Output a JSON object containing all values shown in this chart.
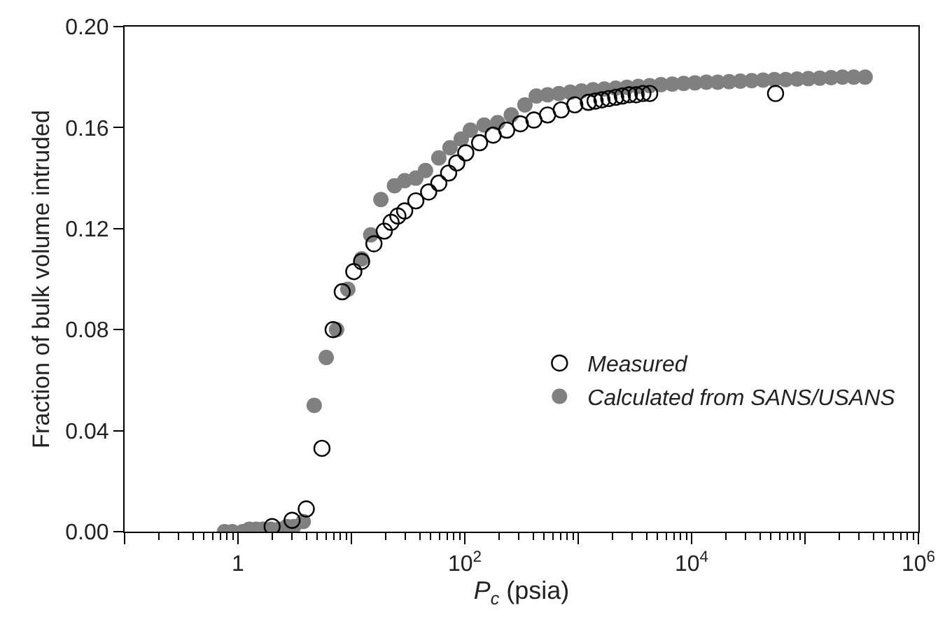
{
  "chart_data": {
    "type": "scatter",
    "xlabel": "P$_{c}$ (psia)",
    "ylabel": "Fraction of bulk volume intruded",
    "log": "x",
    "xlim": [
      0.1,
      1000000
    ],
    "ylim": [
      0,
      0.2
    ],
    "xticks": [
      {
        "value": 0.1,
        "label": null
      },
      {
        "value": 1,
        "label": "1"
      },
      {
        "value": 10,
        "label": null
      },
      {
        "value": 100,
        "label": "10$^{2}$"
      },
      {
        "value": 1000,
        "label": null
      },
      {
        "value": 10000,
        "label": "10$^{4}$"
      },
      {
        "value": 100000,
        "label": null
      },
      {
        "value": 1000000,
        "label": "10$^{6}$"
      }
    ],
    "yticks": [
      {
        "value": 0,
        "label": "0.00"
      },
      {
        "value": 0.04,
        "label": "0.04"
      },
      {
        "value": 0.08,
        "label": "0.08"
      },
      {
        "value": 0.12,
        "label": "0.12"
      },
      {
        "value": 0.16,
        "label": "0.16"
      },
      {
        "value": 0.2,
        "label": "0.20"
      }
    ],
    "legend": "bottom right",
    "marker": "circle",
    "series": [
      {
        "name": "Calculated from SANS/USANS",
        "color": "#808080",
        "x": [
          0.76,
          0.89,
          1.1,
          1.26,
          1.45,
          1.66,
          1.95,
          2.3,
          2.7,
          3.1,
          3.76,
          4.7,
          6.0,
          7.4,
          9.3,
          12.3,
          14.8,
          18.2,
          24,
          29.5,
          37,
          45,
          59,
          74,
          93,
          112,
          148,
          195,
          257,
          339,
          427,
          537,
          676,
          851,
          1070,
          1350,
          1700,
          2140,
          2690,
          3390,
          4270,
          5370,
          6760,
          8510,
          10700,
          13500,
          17000,
          21400,
          26900,
          33900,
          42700,
          53700,
          67600,
          85100,
          107000,
          135000,
          170000,
          214000,
          269000,
          339000
        ],
        "values": [
          0,
          0,
          0,
          0.001,
          0.001,
          0.001,
          0.001,
          0.001,
          0.002,
          0.002,
          0.004,
          0.05,
          0.069,
          0.08,
          0.096,
          0.108,
          0.1175,
          0.1315,
          0.137,
          0.139,
          0.14,
          0.143,
          0.148,
          0.152,
          0.1555,
          0.159,
          0.161,
          0.162,
          0.165,
          0.169,
          0.1725,
          0.173,
          0.1735,
          0.174,
          0.1745,
          0.175,
          0.1753,
          0.1756,
          0.176,
          0.1763,
          0.1766,
          0.177,
          0.1772,
          0.1775,
          0.1777,
          0.178,
          0.178,
          0.1782,
          0.1784,
          0.1786,
          0.1788,
          0.179,
          0.179,
          0.1792,
          0.1794,
          0.1796,
          0.1798,
          0.18,
          0.18,
          0.18
        ]
      },
      {
        "name": "Measured",
        "color": "#000000",
        "x": [
          2.0,
          3.0,
          4.0,
          5.5,
          6.9,
          8.3,
          10.5,
          12.3,
          15.8,
          19.5,
          22.4,
          25.7,
          29.5,
          37,
          48,
          59,
          72,
          85,
          102,
          135,
          178,
          234,
          309,
          407,
          537,
          708,
          933,
          1230,
          1410,
          1620,
          1860,
          2140,
          2450,
          2820,
          3240,
          3720,
          4270,
          55000
        ],
        "values": [
          0.002,
          0.0045,
          0.009,
          0.033,
          0.08,
          0.095,
          0.103,
          0.107,
          0.114,
          0.119,
          0.1225,
          0.125,
          0.127,
          0.131,
          0.1345,
          0.138,
          0.142,
          0.146,
          0.15,
          0.154,
          0.157,
          0.159,
          0.1615,
          0.163,
          0.165,
          0.167,
          0.169,
          0.17,
          0.1705,
          0.171,
          0.1715,
          0.172,
          0.1725,
          0.173,
          0.173,
          0.1735,
          0.1735,
          0.1735
        ]
      }
    ]
  }
}
